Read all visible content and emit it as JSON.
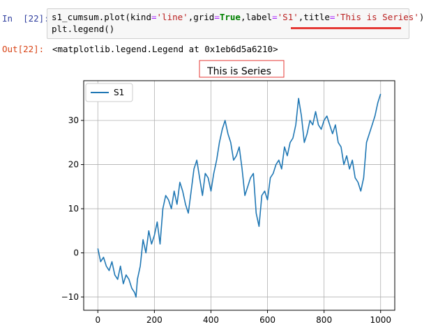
{
  "cell_in": {
    "prompt": "In  [22]:",
    "code": {
      "line1": {
        "p1": "s1_cumsum.plot(kind",
        "eq1": "=",
        "s_line": "'line'",
        "p2": ",grid",
        "eq2": "=",
        "kw_true": "True",
        "p3": ",label",
        "eq3": "=",
        "s_s1": "'S1'",
        "p4": ",title",
        "eq4": "=",
        "s_title": "'This is Series'",
        "p5": ")"
      },
      "line2": "plt.legend()"
    }
  },
  "cell_out": {
    "prompt": "Out[22]:",
    "text": "<matplotlib.legend.Legend at 0x1eb6d5a6210>"
  },
  "colors": {
    "series": "#1f77b4",
    "highlight": "#e53935",
    "grid": "#b0b0b0"
  },
  "chart_data": {
    "type": "line",
    "title": "This is Series",
    "xlabel": "",
    "ylabel": "",
    "xlim": [
      -50,
      1050
    ],
    "ylim": [
      -13,
      39
    ],
    "xticks": [
      0,
      200,
      400,
      600,
      800,
      1000
    ],
    "yticks": [
      -10,
      0,
      10,
      20,
      30
    ],
    "grid": true,
    "legend": {
      "position": "top-left",
      "entries": [
        "S1"
      ]
    },
    "series": [
      {
        "name": "S1",
        "x": [
          0,
          10,
          20,
          30,
          40,
          50,
          60,
          70,
          80,
          90,
          100,
          110,
          120,
          130,
          135,
          140,
          150,
          160,
          170,
          180,
          190,
          200,
          210,
          220,
          230,
          240,
          250,
          260,
          270,
          280,
          290,
          300,
          310,
          320,
          330,
          340,
          350,
          360,
          370,
          380,
          390,
          400,
          410,
          420,
          430,
          440,
          450,
          460,
          470,
          480,
          490,
          500,
          510,
          520,
          530,
          540,
          550,
          560,
          570,
          580,
          590,
          600,
          610,
          620,
          630,
          640,
          650,
          660,
          670,
          680,
          690,
          700,
          710,
          720,
          730,
          740,
          750,
          760,
          770,
          780,
          790,
          800,
          810,
          820,
          830,
          840,
          850,
          860,
          870,
          880,
          890,
          900,
          910,
          920,
          930,
          940,
          950,
          960,
          970,
          980,
          990,
          1000
        ],
        "values": [
          1,
          -2,
          -1,
          -3,
          -4,
          -2,
          -5,
          -6,
          -3,
          -7,
          -5,
          -6,
          -8,
          -9,
          -10,
          -6,
          -3,
          3,
          0,
          5,
          2,
          4,
          7,
          2,
          10,
          13,
          12,
          10,
          14,
          11,
          16,
          14,
          11,
          9,
          14,
          19,
          21,
          17,
          13,
          18,
          17,
          14,
          18,
          21,
          25,
          28,
          30,
          27,
          25,
          21,
          22,
          24,
          19,
          13,
          15,
          17,
          18,
          9,
          6,
          13,
          14,
          12,
          17,
          18,
          20,
          21,
          19,
          24,
          22,
          25,
          26,
          29,
          35,
          31,
          25,
          27,
          30,
          29,
          32,
          29,
          28,
          30,
          31,
          29,
          27,
          29,
          25,
          24,
          20,
          22,
          19,
          21,
          17,
          16,
          14,
          17,
          25,
          27,
          29,
          31,
          34,
          36
        ]
      }
    ]
  }
}
